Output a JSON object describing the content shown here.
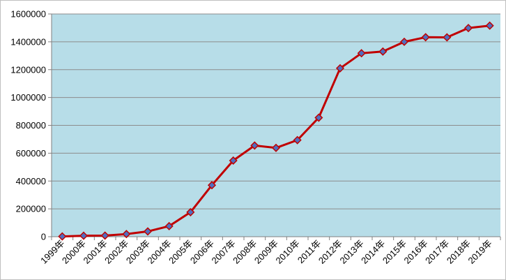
{
  "chart_data": {
    "type": "line",
    "title": "",
    "xlabel": "",
    "ylabel": "",
    "categories": [
      "1999年",
      "2000年",
      "2001年",
      "2002年",
      "2003年",
      "2004年",
      "2005年",
      "2006年",
      "2007年",
      "2008年",
      "2009年",
      "2010年",
      "2011年",
      "2012年",
      "2013年",
      "2014年",
      "2015年",
      "2016年",
      "2017年",
      "2018年",
      "2019年"
    ],
    "series": [
      {
        "values": [
          2000,
          7000,
          8000,
          19000,
          38000,
          76000,
          176000,
          370000,
          547000,
          655000,
          638000,
          694000,
          855000,
          1210000,
          1318000,
          1330000,
          1400000,
          1433000,
          1432000,
          1499000,
          1516000
        ]
      }
    ],
    "ylim": [
      0,
      1600000
    ],
    "yticks": [
      0,
      200000,
      400000,
      600000,
      800000,
      1000000,
      1200000,
      1400000,
      1600000
    ],
    "grid": true,
    "legend": "none",
    "colors": {
      "plot_background": "#b7dde8",
      "line": "#c00000",
      "marker_fill": "#4f6fc0",
      "marker_stroke": "#c00000",
      "gridline": "#8c8c8c",
      "axis": "#808080"
    }
  }
}
